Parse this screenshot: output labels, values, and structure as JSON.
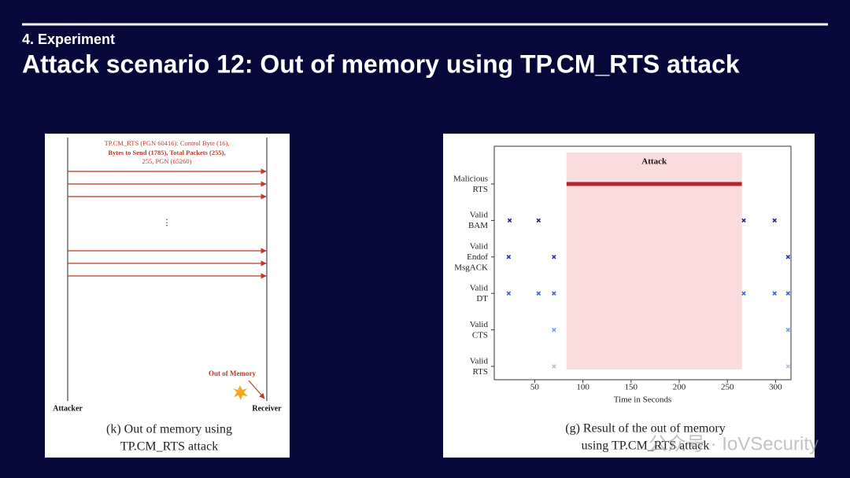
{
  "header": {
    "section": "4. Experiment",
    "title": "Attack scenario 12: Out of memory using TP.CM_RTS attack"
  },
  "left_figure": {
    "message_lines": [
      "TP.CM_RTS (PGN 60416): Control Byte (16),",
      "Bytes to Send (1785), Total Packets (255),",
      "255, PGN (65260)"
    ],
    "ellipsis": "⋮",
    "out_of_memory": "Out of Memory",
    "sender": "Attacker",
    "receiver": "Receiver",
    "caption": [
      "(k) Out of memory using",
      "TP.CM_RTS attack"
    ]
  },
  "chart_data": {
    "type": "scatter",
    "categories": [
      "Malicious RTS",
      "Valid BAM",
      "Valid Endof MsgACK",
      "Valid DT",
      "Valid CTS",
      "Valid RTS"
    ],
    "xlabel": "Time in Seconds",
    "xlim": [
      8,
      316
    ],
    "xticks": [
      50,
      100,
      150,
      200,
      250,
      300
    ],
    "attack_region": {
      "label": "Attack",
      "xlim": [
        83,
        265
      ],
      "color": "#fbdcdc"
    },
    "series": [
      {
        "category": "Malicious RTS",
        "color": "#b0262a",
        "marker": "line",
        "x": [
          83,
          265
        ]
      },
      {
        "category": "Valid BAM",
        "color": "#1b2580",
        "marker": "x",
        "x": [
          24,
          54,
          267,
          299
        ]
      },
      {
        "category": "Valid Endof MsgACK",
        "color": "#2636b0",
        "marker": "x",
        "x": [
          23,
          70,
          313
        ]
      },
      {
        "category": "Valid DT",
        "color": "#3a6ad0",
        "marker": "x",
        "x": [
          23,
          54,
          70,
          267,
          299,
          313
        ]
      },
      {
        "category": "Valid CTS",
        "color": "#6f9ee0",
        "marker": "x",
        "x": [
          70,
          313
        ]
      },
      {
        "category": "Valid RTS",
        "color": "#b3c2d6",
        "marker": "x",
        "x": [
          70,
          313
        ]
      }
    ],
    "caption": [
      "(g) Result of the out of memory",
      "using TP.CM_RTS attack"
    ]
  },
  "watermark": "公众号 · IoVSecurity"
}
